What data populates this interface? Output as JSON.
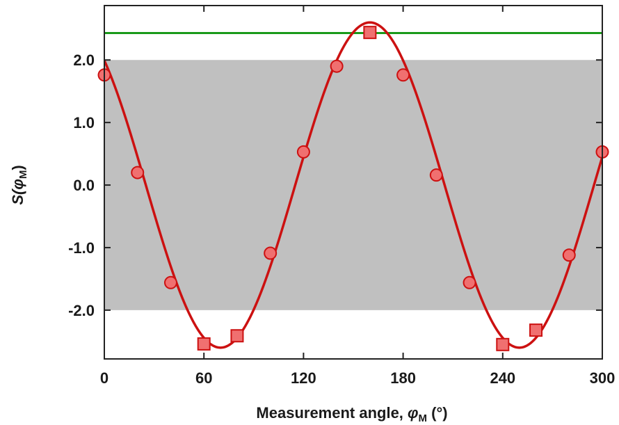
{
  "chart_data": {
    "type": "scatter",
    "xlabel": {
      "prefix": "Measurement angle, ",
      "symbol": "φ",
      "subscript": "M",
      "suffix": " (°)"
    },
    "ylabel": {
      "prefix": "S(",
      "symbol": "φ",
      "subscript": "M",
      "suffix": ")"
    },
    "xlim": [
      0,
      300
    ],
    "ylim": [
      -2.78,
      2.87
    ],
    "xticks": [
      0,
      60,
      120,
      180,
      240,
      300
    ],
    "xtick_labels": [
      "0",
      "60",
      "120",
      "180",
      "240",
      "300"
    ],
    "yticks": [
      2.0,
      1.0,
      0.0,
      -1.0,
      -2.0
    ],
    "ytick_labels": [
      "2.0",
      "1.0",
      "0.0",
      "-1.0",
      "-2.0"
    ],
    "grid": false,
    "shaded_band": {
      "y_from": -2.0,
      "y_to": 2.0,
      "color": "#c0c0c0"
    },
    "reference_line": {
      "y": 2.43,
      "color": "#1a9a1a"
    },
    "fit_curve": {
      "color": "#cc1111",
      "amplitude": 2.6,
      "period": 180,
      "phase_deg": 160
    },
    "series": [
      {
        "marker": "circle",
        "color": "#f07070",
        "edge_color": "#cc1111",
        "x": [
          0,
          20,
          40,
          100,
          120,
          140,
          180,
          200,
          220,
          280,
          300
        ],
        "y": [
          1.76,
          0.2,
          -1.56,
          -1.09,
          0.53,
          1.9,
          1.76,
          0.16,
          -1.56,
          -1.12,
          0.53
        ]
      },
      {
        "marker": "square",
        "color": "#f07070",
        "edge_color": "#cc1111",
        "x": [
          60,
          80,
          160,
          240,
          260
        ],
        "y": [
          -2.54,
          -2.41,
          2.44,
          -2.55,
          -2.32
        ]
      }
    ]
  }
}
